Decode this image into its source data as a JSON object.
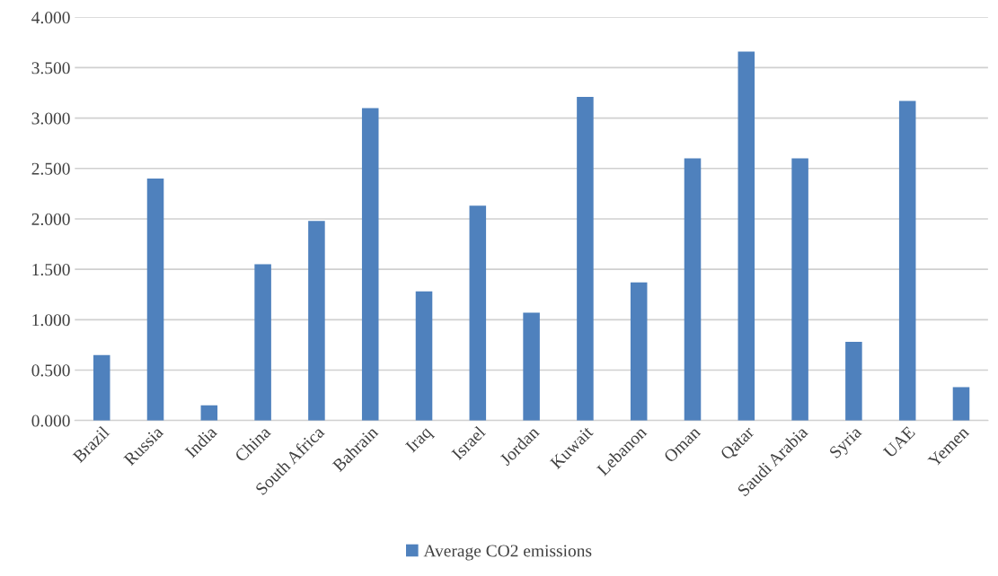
{
  "chart_data": {
    "type": "bar",
    "categories": [
      "Brazil",
      "Russia",
      "India",
      "China",
      "South Africa",
      "Bahrain",
      "Iraq",
      "Israel",
      "Jordan",
      "Kuwait",
      "Lebanon",
      "Oman",
      "Qatar",
      "Saudi Arabia",
      "Syria",
      "UAE",
      "Yemen"
    ],
    "series": [
      {
        "name": "Average CO2 emissions",
        "color": "#4f81bd",
        "values": [
          0.65,
          2.4,
          0.15,
          1.55,
          1.98,
          3.1,
          1.28,
          2.13,
          1.07,
          3.21,
          1.37,
          2.6,
          3.66,
          2.6,
          0.78,
          3.17,
          0.33
        ]
      }
    ],
    "ylim": [
      0,
      4
    ],
    "yticks": [
      {
        "value": 0,
        "label": "0.000"
      },
      {
        "value": 0.5,
        "label": "0.500"
      },
      {
        "value": 1,
        "label": "1.000"
      },
      {
        "value": 1.5,
        "label": "1.500"
      },
      {
        "value": 2,
        "label": "2.000"
      },
      {
        "value": 2.5,
        "label": "2.500"
      },
      {
        "value": 3,
        "label": "3.000"
      },
      {
        "value": 3.5,
        "label": "3.500"
      },
      {
        "value": 4,
        "label": "4.000"
      }
    ],
    "grid": "y",
    "legend": "bottom"
  }
}
